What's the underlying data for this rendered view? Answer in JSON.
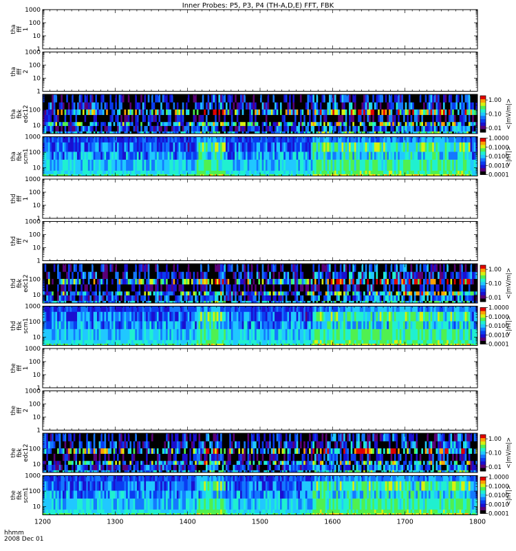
{
  "title": "Inner Probes: P5, P3, P4 (TH-A,D,E) FFT, FBK",
  "footer": {
    "time_format": "hhmm",
    "date": "2008 Dec 01"
  },
  "chart_data": {
    "type": "heatmap",
    "title": "Inner Probes: P5, P3, P4 (TH-A,D,E) FFT, FBK",
    "x_ticks": [
      1200,
      1300,
      1400,
      1500,
      1600,
      1700,
      1800
    ],
    "xlim": [
      1200,
      1800
    ],
    "y_scale": "log",
    "colorscale": [
      "#000000",
      "#5a0078",
      "#1a0fd0",
      "#0a3cf0",
      "#1478ff",
      "#20c8ff",
      "#20f0d0",
      "#50f050",
      "#d8f010",
      "#ffa000",
      "#e00000"
    ],
    "panels": [
      {
        "label": [
          "tha",
          "fff",
          "1"
        ],
        "kind": "empty",
        "ylim": [
          1,
          1000
        ],
        "y_ticks": [
          "1000",
          "100",
          "10",
          "1"
        ]
      },
      {
        "label": [
          "tha",
          "fff",
          "2"
        ],
        "kind": "empty",
        "ylim": [
          1,
          1000
        ],
        "y_ticks": [
          "1000",
          "100",
          "10",
          "1"
        ]
      },
      {
        "label": [
          "tha",
          "fbk",
          "edc12"
        ],
        "kind": "edc",
        "ylim": [
          3,
          1000
        ],
        "y_ticks": [
          "100",
          "10"
        ],
        "colorbar": {
          "label": "<|mV/m|>",
          "ticks": [
            "1.00",
            "0.10",
            "0.01"
          ],
          "range": [
            0.005,
            2.0
          ]
        }
      },
      {
        "label": [
          "tha",
          "fbk",
          "scm1"
        ],
        "kind": "scm",
        "ylim": [
          3,
          1000
        ],
        "y_ticks": [
          "1000",
          "100",
          "10"
        ],
        "colorbar": {
          "label": "<|nT|>",
          "ticks": [
            "1.0000",
            "0.1000",
            "0.0100",
            "0.0010",
            "0.0001"
          ],
          "range": [
            0.0001,
            1.0
          ]
        }
      },
      {
        "label": [
          "thd",
          "fff",
          "1"
        ],
        "kind": "empty",
        "ylim": [
          1,
          1000
        ],
        "y_ticks": [
          "1000",
          "100",
          "10",
          "1"
        ]
      },
      {
        "label": [
          "thd",
          "fff",
          "2"
        ],
        "kind": "empty",
        "ylim": [
          1,
          1000
        ],
        "y_ticks": [
          "1000",
          "100",
          "10",
          "1"
        ]
      },
      {
        "label": [
          "thd",
          "fbk",
          "edc12"
        ],
        "kind": "edc",
        "ylim": [
          3,
          1000
        ],
        "y_ticks": [
          "100",
          "10"
        ],
        "colorbar": {
          "label": "<|mV/m|>",
          "ticks": [
            "1.00",
            "0.10",
            "0.01"
          ],
          "range": [
            0.005,
            2.0
          ]
        }
      },
      {
        "label": [
          "thd",
          "fbk",
          "scm1"
        ],
        "kind": "scm",
        "ylim": [
          3,
          1000
        ],
        "y_ticks": [
          "1000",
          "100",
          "10"
        ],
        "colorbar": {
          "label": "<|nT|>",
          "ticks": [
            "1.0000",
            "0.1000",
            "0.0100",
            "0.0010",
            "0.0001"
          ],
          "range": [
            0.0001,
            1.0
          ]
        }
      },
      {
        "label": [
          "the",
          "fff",
          "1"
        ],
        "kind": "empty",
        "ylim": [
          1,
          1000
        ],
        "y_ticks": [
          "1000",
          "100",
          "10",
          "1"
        ]
      },
      {
        "label": [
          "the",
          "fff",
          "2"
        ],
        "kind": "empty",
        "ylim": [
          1,
          1000
        ],
        "y_ticks": [
          "1000",
          "100",
          "10",
          "1"
        ]
      },
      {
        "label": [
          "the",
          "fbk",
          "edc12"
        ],
        "kind": "edc",
        "ylim": [
          3,
          1000
        ],
        "y_ticks": [
          "100",
          "10"
        ],
        "colorbar": {
          "label": "<|mV/m|>",
          "ticks": [
            "1.00",
            "0.10",
            "0.01"
          ],
          "range": [
            0.005,
            2.0
          ]
        }
      },
      {
        "label": [
          "the",
          "fbk",
          "scm1"
        ],
        "kind": "scm",
        "ylim": [
          3,
          1000
        ],
        "y_ticks": [
          "1000",
          "100",
          "10"
        ],
        "colorbar": {
          "label": "<|nT|>",
          "ticks": [
            "1.0000",
            "0.1000",
            "0.0100",
            "0.0010",
            "0.0001"
          ],
          "range": [
            0.0001,
            1.0
          ]
        }
      }
    ]
  }
}
